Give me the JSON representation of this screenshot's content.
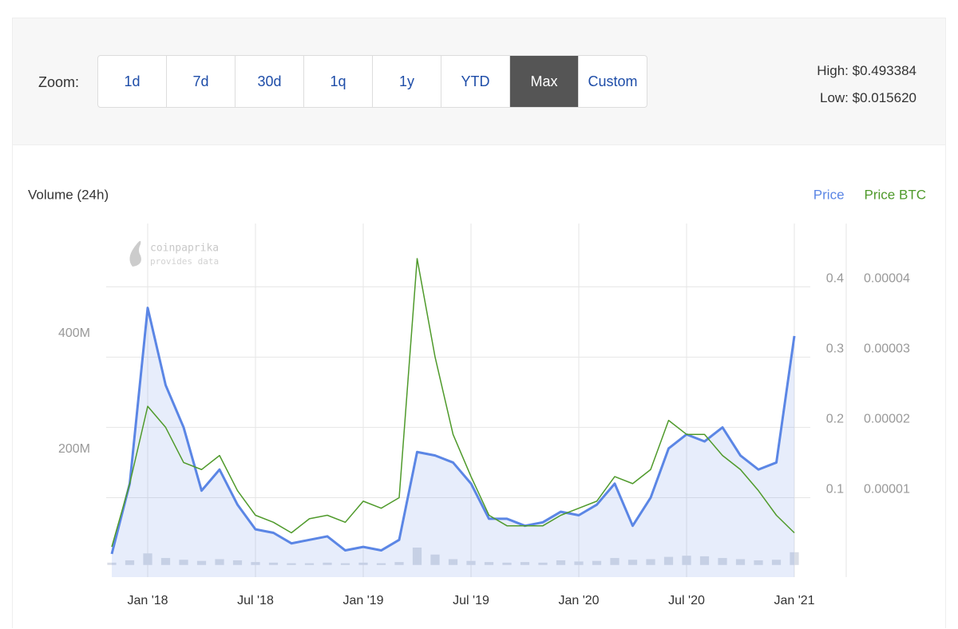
{
  "toolbar": {
    "zoom_label": "Zoom:",
    "buttons": [
      "1d",
      "7d",
      "30d",
      "1q",
      "1y",
      "YTD",
      "Max",
      "Custom"
    ],
    "active": "Max",
    "high": "High: $0.493384",
    "low": "Low: $0.015620"
  },
  "chart_data": {
    "type": "line",
    "watermark": [
      "coinpaprika",
      "provides data"
    ],
    "x": [
      "2017-11",
      "2017-12",
      "2018-01",
      "2018-02",
      "2018-03",
      "2018-04",
      "2018-05",
      "2018-06",
      "2018-07",
      "2018-08",
      "2018-09",
      "2018-10",
      "2018-11",
      "2018-12",
      "2019-01",
      "2019-02",
      "2019-03",
      "2019-04",
      "2019-05",
      "2019-06",
      "2019-07",
      "2019-08",
      "2019-09",
      "2019-10",
      "2019-11",
      "2019-12",
      "2020-01",
      "2020-02",
      "2020-03",
      "2020-04",
      "2020-05",
      "2020-06",
      "2020-07",
      "2020-08",
      "2020-09",
      "2020-10",
      "2020-11",
      "2020-12",
      "2021-01"
    ],
    "xlim": [
      "2017-11",
      "2021-01"
    ],
    "xticks": [
      {
        "value": "2018-01",
        "label": "Jan '18"
      },
      {
        "value": "2018-07",
        "label": "Jul '18"
      },
      {
        "value": "2019-01",
        "label": "Jan '19"
      },
      {
        "value": "2019-07",
        "label": "Jul '19"
      },
      {
        "value": "2020-01",
        "label": "Jan '20"
      },
      {
        "value": "2020-07",
        "label": "Jul '20"
      },
      {
        "value": "2021-01",
        "label": "Jan '21"
      }
    ],
    "series": [
      {
        "name": "Volume (24h)",
        "style": "bar",
        "axis": "y",
        "color": "#d9dde6",
        "values": [
          4000000,
          8000000,
          20000000,
          12000000,
          9000000,
          7000000,
          10000000,
          8000000,
          5000000,
          4000000,
          3000000,
          3000000,
          4000000,
          3000000,
          4000000,
          3000000,
          5000000,
          30000000,
          18000000,
          10000000,
          7000000,
          5000000,
          4000000,
          5000000,
          4000000,
          8000000,
          6000000,
          7000000,
          12000000,
          9000000,
          10000000,
          14000000,
          16000000,
          15000000,
          12000000,
          10000000,
          8000000,
          9000000,
          22000000
        ]
      },
      {
        "name": "Price",
        "style": "area",
        "axis": "y2",
        "color": "#5b86e5",
        "values": [
          0.02,
          0.12,
          0.37,
          0.26,
          0.2,
          0.11,
          0.14,
          0.09,
          0.055,
          0.05,
          0.035,
          0.04,
          0.045,
          0.025,
          0.03,
          0.025,
          0.04,
          0.165,
          0.16,
          0.15,
          0.12,
          0.07,
          0.07,
          0.06,
          0.065,
          0.08,
          0.075,
          0.09,
          0.12,
          0.06,
          0.1,
          0.17,
          0.19,
          0.18,
          0.2,
          0.16,
          0.14,
          0.15,
          0.33
        ]
      },
      {
        "name": "Price BTC",
        "style": "line",
        "axis": "y3",
        "color": "#4f9a2b",
        "values": [
          3e-06,
          1.2e-05,
          2.3e-05,
          2e-05,
          1.5e-05,
          1.4e-05,
          1.6e-05,
          1.1e-05,
          7.5e-06,
          6.5e-06,
          5e-06,
          7e-06,
          7.5e-06,
          6.5e-06,
          9.5e-06,
          8.5e-06,
          1e-05,
          4.4e-05,
          3e-05,
          1.9e-05,
          1.3e-05,
          7.5e-06,
          6e-06,
          6e-06,
          6e-06,
          7.5e-06,
          8.5e-06,
          9.5e-06,
          1.3e-05,
          1.2e-05,
          1.4e-05,
          2.1e-05,
          1.9e-05,
          1.9e-05,
          1.6e-05,
          1.4e-05,
          1.1e-05,
          7.5e-06,
          5e-06
        ]
      }
    ],
    "ylim": [
      -21000000,
      590000000
    ],
    "yticks": [
      {
        "value": 200000000,
        "label": "200M"
      },
      {
        "value": 400000000,
        "label": "400M"
      }
    ],
    "y2lim": [
      -0.013,
      0.49
    ],
    "y2ticks": [
      0.1,
      0.2,
      0.3,
      0.4
    ],
    "y3lim": [
      -1.3e-06,
      4.9e-05
    ],
    "y3ticks": [
      1e-05,
      2e-05,
      3e-05,
      4e-05
    ],
    "grid": true
  }
}
